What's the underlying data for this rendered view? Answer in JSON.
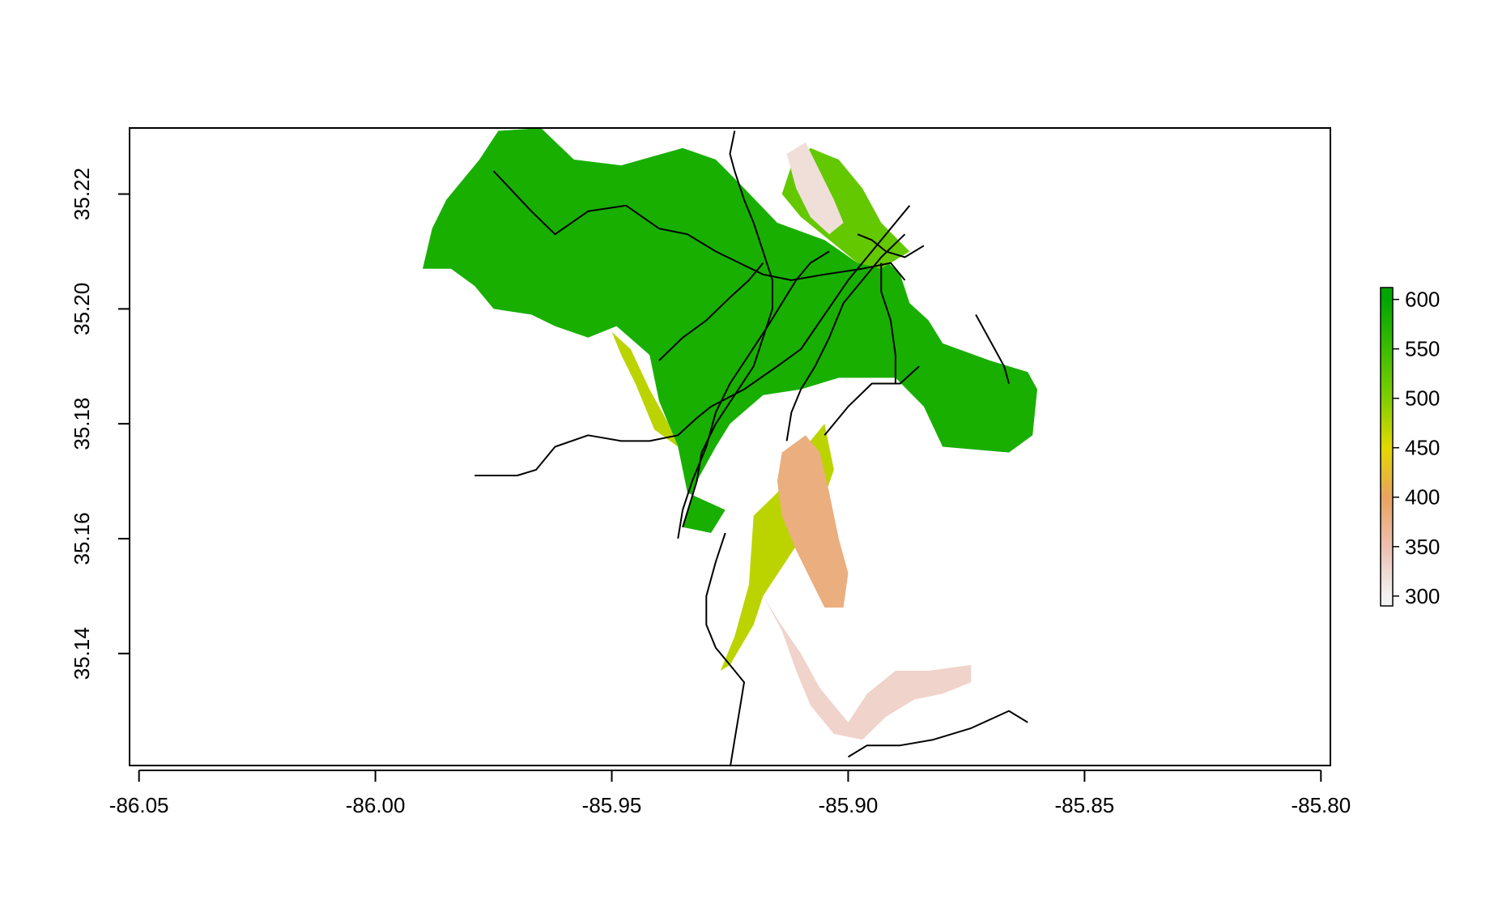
{
  "chart_data": {
    "type": "heatmap",
    "title": "",
    "xlabel": "",
    "ylabel": "",
    "xlim": [
      -86.052,
      -85.798
    ],
    "ylim": [
      35.1205,
      35.2315
    ],
    "x_ticks": [
      -86.05,
      -86.0,
      -85.95,
      -85.9,
      -85.85,
      -85.8
    ],
    "x_tick_labels": [
      "-86.05",
      "-86.00",
      "-85.95",
      "-85.90",
      "-85.85",
      "-85.80"
    ],
    "y_ticks": [
      35.14,
      35.16,
      35.18,
      35.2,
      35.22
    ],
    "y_tick_labels": [
      "35.14",
      "35.16",
      "35.18",
      "35.20",
      "35.22"
    ],
    "legend": {
      "position": "right",
      "values": [
        300,
        350,
        400,
        450,
        500,
        550,
        600
      ],
      "labels": [
        "300",
        "350",
        "400",
        "450",
        "500",
        "550",
        "600"
      ],
      "range": [
        290,
        612
      ],
      "colors": [
        "#f2f2f2",
        "#eebfb0",
        "#e8a35f",
        "#e3d800",
        "#7fcf00",
        "#3cbd00",
        "#00a600"
      ]
    },
    "series": [
      {
        "type": "raster",
        "regions": [
          {
            "elevation": 580,
            "outline": [
              [
                -85.99,
                35.207
              ],
              [
                -85.988,
                35.214
              ],
              [
                -85.985,
                35.219
              ],
              [
                -85.978,
                35.226
              ],
              [
                -85.974,
                35.231
              ],
              [
                -85.965,
                35.2315
              ],
              [
                -85.958,
                35.226
              ],
              [
                -85.948,
                35.225
              ],
              [
                -85.935,
                35.228
              ],
              [
                -85.928,
                35.226
              ],
              [
                -85.922,
                35.221
              ],
              [
                -85.915,
                35.215
              ],
              [
                -85.905,
                35.212
              ],
              [
                -85.898,
                35.208
              ],
              [
                -85.894,
                35.21
              ],
              [
                -85.889,
                35.206
              ],
              [
                -85.887,
                35.201
              ],
              [
                -85.883,
                35.198
              ],
              [
                -85.88,
                35.194
              ],
              [
                -85.87,
                35.191
              ],
              [
                -85.862,
                35.189
              ],
              [
                -85.86,
                35.186
              ],
              [
                -85.861,
                35.178
              ],
              [
                -85.866,
                35.175
              ],
              [
                -85.88,
                35.176
              ],
              [
                -85.884,
                35.183
              ],
              [
                -85.89,
                35.188
              ],
              [
                -85.902,
                35.188
              ],
              [
                -85.91,
                35.186
              ],
              [
                -85.918,
                35.185
              ],
              [
                -85.925,
                35.18
              ],
              [
                -85.928,
                35.176
              ],
              [
                -85.932,
                35.17
              ],
              [
                -85.935,
                35.162
              ],
              [
                -85.929,
                35.161
              ],
              [
                -85.926,
                35.165
              ],
              [
                -85.934,
                35.168
              ],
              [
                -85.936,
                35.176
              ],
              [
                -85.94,
                35.184
              ],
              [
                -85.942,
                35.192
              ],
              [
                -85.949,
                35.197
              ],
              [
                -85.955,
                35.195
              ],
              [
                -85.962,
                35.197
              ],
              [
                -85.967,
                35.199
              ],
              [
                -85.975,
                35.2
              ],
              [
                -85.979,
                35.204
              ],
              [
                -85.984,
                35.207
              ]
            ]
          },
          {
            "elevation": 520,
            "outline": [
              [
                -85.902,
                35.226
              ],
              [
                -85.897,
                35.221
              ],
              [
                -85.893,
                35.215
              ],
              [
                -85.887,
                35.21
              ],
              [
                -85.893,
                35.207
              ],
              [
                -85.898,
                35.208
              ],
              [
                -85.904,
                35.212
              ],
              [
                -85.91,
                35.216
              ],
              [
                -85.914,
                35.22
              ],
              [
                -85.912,
                35.225
              ],
              [
                -85.908,
                35.228
              ]
            ]
          },
          {
            "elevation": 470,
            "outline": [
              [
                -85.95,
                35.196
              ],
              [
                -85.946,
                35.193
              ],
              [
                -85.942,
                35.186
              ],
              [
                -85.938,
                35.18
              ],
              [
                -85.936,
                35.176
              ],
              [
                -85.941,
                35.179
              ],
              [
                -85.945,
                35.187
              ],
              [
                -85.948,
                35.192
              ]
            ]
          },
          {
            "elevation": 470,
            "outline": [
              [
                -85.92,
                35.164
              ],
              [
                -85.915,
                35.168
              ],
              [
                -85.909,
                35.176
              ],
              [
                -85.905,
                35.18
              ],
              [
                -85.903,
                35.172
              ],
              [
                -85.906,
                35.165
              ],
              [
                -85.91,
                35.16
              ],
              [
                -85.914,
                35.155
              ],
              [
                -85.918,
                35.15
              ],
              [
                -85.92,
                35.145
              ],
              [
                -85.925,
                35.138
              ],
              [
                -85.927,
                35.137
              ],
              [
                -85.924,
                35.143
              ],
              [
                -85.921,
                35.152
              ]
            ]
          },
          {
            "elevation": 380,
            "outline": [
              [
                -85.914,
                35.175
              ],
              [
                -85.909,
                35.178
              ],
              [
                -85.906,
                35.175
              ],
              [
                -85.904,
                35.168
              ],
              [
                -85.902,
                35.16
              ],
              [
                -85.9,
                35.154
              ],
              [
                -85.901,
                35.148
              ],
              [
                -85.905,
                35.148
              ],
              [
                -85.908,
                35.153
              ],
              [
                -85.911,
                35.158
              ],
              [
                -85.914,
                35.164
              ],
              [
                -85.915,
                35.17
              ]
            ]
          },
          {
            "elevation": 330,
            "outline": [
              [
                -85.918,
                35.15
              ],
              [
                -85.914,
                35.144
              ],
              [
                -85.911,
                35.137
              ],
              [
                -85.908,
                35.131
              ],
              [
                -85.903,
                35.126
              ],
              [
                -85.897,
                35.125
              ],
              [
                -85.892,
                35.129
              ],
              [
                -85.886,
                35.132
              ],
              [
                -85.88,
                35.133
              ],
              [
                -85.874,
                35.135
              ],
              [
                -85.874,
                35.138
              ],
              [
                -85.883,
                35.137
              ],
              [
                -85.89,
                35.137
              ],
              [
                -85.896,
                35.133
              ],
              [
                -85.9,
                35.128
              ],
              [
                -85.906,
                35.134
              ],
              [
                -85.91,
                35.14
              ],
              [
                -85.915,
                35.146
              ]
            ]
          },
          {
            "elevation": 320,
            "outline": [
              [
                -85.909,
                35.229
              ],
              [
                -85.906,
                35.224
              ],
              [
                -85.903,
                35.219
              ],
              [
                -85.901,
                35.215
              ],
              [
                -85.904,
                35.213
              ],
              [
                -85.908,
                35.216
              ],
              [
                -85.911,
                35.221
              ],
              [
                -85.913,
                35.227
              ]
            ]
          }
        ]
      },
      {
        "type": "lines",
        "name": "",
        "color": "#000000",
        "paths": [
          [
            [
              -85.979,
              35.171
            ],
            [
              -85.97,
              35.171
            ],
            [
              -85.966,
              35.172
            ],
            [
              -85.962,
              35.176
            ],
            [
              -85.955,
              35.178
            ],
            [
              -85.948,
              35.177
            ],
            [
              -85.942,
              35.177
            ],
            [
              -85.936,
              35.178
            ],
            [
              -85.932,
              35.181
            ],
            [
              -85.929,
              35.183
            ],
            [
              -85.922,
              35.186
            ],
            [
              -85.915,
              35.19
            ],
            [
              -85.91,
              35.193
            ],
            [
              -85.905,
              35.199
            ],
            [
              -85.9,
              35.205
            ],
            [
              -85.895,
              35.21
            ],
            [
              -85.887,
              35.218
            ]
          ],
          [
            [
              -85.913,
              35.177
            ],
            [
              -85.912,
              35.182
            ],
            [
              -85.91,
              35.186
            ],
            [
              -85.907,
              35.19
            ],
            [
              -85.904,
              35.195
            ],
            [
              -85.901,
              35.201
            ],
            [
              -85.897,
              35.205
            ],
            [
              -85.893,
              35.209
            ],
            [
              -85.888,
              35.213
            ]
          ],
          [
            [
              -85.975,
              35.224
            ],
            [
              -85.967,
              35.217
            ],
            [
              -85.962,
              35.213
            ],
            [
              -85.955,
              35.217
            ],
            [
              -85.947,
              35.218
            ],
            [
              -85.94,
              35.214
            ],
            [
              -85.934,
              35.213
            ],
            [
              -85.928,
              35.21
            ],
            [
              -85.923,
              35.208
            ],
            [
              -85.918,
              35.206
            ],
            [
              -85.912,
              35.205
            ],
            [
              -85.905,
              35.206
            ],
            [
              -85.897,
              35.207
            ],
            [
              -85.891,
              35.208
            ],
            [
              -85.888,
              35.205
            ]
          ],
          [
            [
              -85.924,
              35.231
            ],
            [
              -85.925,
              35.227
            ],
            [
              -85.924,
              35.224
            ],
            [
              -85.922,
              35.219
            ],
            [
              -85.92,
              35.215
            ],
            [
              -85.918,
              35.21
            ],
            [
              -85.916,
              35.205
            ],
            [
              -85.916,
              35.2
            ],
            [
              -85.918,
              35.195
            ],
            [
              -85.92,
              35.19
            ],
            [
              -85.924,
              35.185
            ],
            [
              -85.928,
              35.18
            ],
            [
              -85.931,
              35.175
            ],
            [
              -85.932,
              35.17
            ],
            [
              -85.935,
              35.162
            ]
          ],
          [
            [
              -85.926,
              35.161
            ],
            [
              -85.928,
              35.156
            ],
            [
              -85.93,
              35.15
            ],
            [
              -85.93,
              35.145
            ],
            [
              -85.928,
              35.141
            ],
            [
              -85.925,
              35.138
            ],
            [
              -85.922,
              35.135
            ],
            [
              -85.923,
              35.13
            ],
            [
              -85.924,
              35.125
            ],
            [
              -85.925,
              35.12
            ]
          ],
          [
            [
              -85.89,
              35.187
            ],
            [
              -85.89,
              35.192
            ],
            [
              -85.891,
              35.198
            ],
            [
              -85.893,
              35.203
            ],
            [
              -85.893,
              35.208
            ]
          ],
          [
            [
              -85.905,
              35.178
            ],
            [
              -85.9,
              35.183
            ],
            [
              -85.895,
              35.187
            ],
            [
              -85.889,
              35.187
            ],
            [
              -85.885,
              35.19
            ]
          ],
          [
            [
              -85.9,
              35.122
            ],
            [
              -85.896,
              35.124
            ],
            [
              -85.889,
              35.124
            ],
            [
              -85.882,
              35.125
            ],
            [
              -85.874,
              35.127
            ],
            [
              -85.866,
              35.13
            ],
            [
              -85.862,
              35.128
            ]
          ],
          [
            [
              -85.94,
              35.191
            ],
            [
              -85.935,
              35.195
            ],
            [
              -85.93,
              35.198
            ],
            [
              -85.925,
              35.202
            ],
            [
              -85.921,
              35.205
            ],
            [
              -85.918,
              35.208
            ]
          ],
          [
            [
              -85.936,
              35.16
            ],
            [
              -85.935,
              35.165
            ],
            [
              -85.933,
              35.17
            ],
            [
              -85.93,
              35.176
            ],
            [
              -85.928,
              35.182
            ],
            [
              -85.925,
              35.187
            ],
            [
              -85.921,
              35.192
            ],
            [
              -85.917,
              35.197
            ],
            [
              -85.914,
              35.201
            ],
            [
              -85.911,
              35.205
            ],
            [
              -85.908,
              35.208
            ],
            [
              -85.904,
              35.21
            ]
          ],
          [
            [
              -85.873,
              35.199
            ],
            [
              -85.871,
              35.196
            ],
            [
              -85.869,
              35.193
            ],
            [
              -85.867,
              35.19
            ],
            [
              -85.866,
              35.187
            ]
          ],
          [
            [
              -85.898,
              35.213
            ],
            [
              -85.895,
              35.212
            ],
            [
              -85.892,
              35.21
            ],
            [
              -85.888,
              35.209
            ],
            [
              -85.884,
              35.211
            ]
          ]
        ]
      }
    ]
  }
}
